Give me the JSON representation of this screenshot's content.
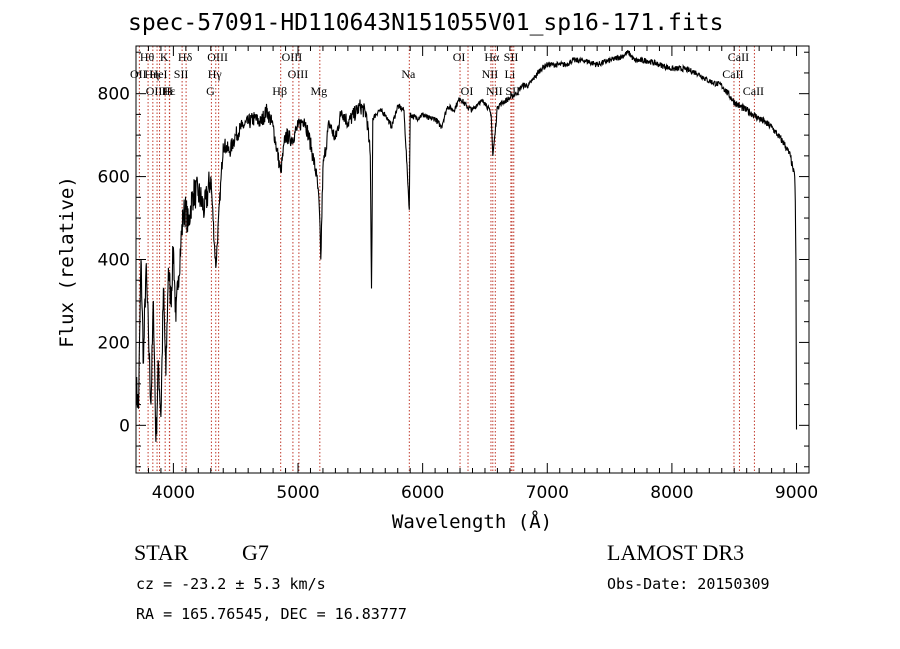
{
  "title": "spec-57091-HD110643N151055V01_sp16-171.fits",
  "footer": {
    "object_type": "STAR",
    "subclass": "G7",
    "survey": "LAMOST DR3",
    "cz": "cz = -23.2 ± 5.3 km/s",
    "obs_date": "Obs-Date: 20150309",
    "coords": "RA = 165.76545, DEC =  16.83777"
  },
  "chart_data": {
    "type": "line",
    "title": "spec-57091-HD110643N151055V01_sp16-171.fits",
    "xlabel": "Wavelength (Å)",
    "ylabel": "Flux (relative)",
    "xlim": [
      3700,
      9100
    ],
    "ylim": [
      -115,
      915
    ],
    "x_ticks": [
      4000,
      5000,
      6000,
      7000,
      8000,
      9000
    ],
    "y_ticks": [
      0,
      200,
      400,
      600,
      800
    ],
    "x_tick_labels": [
      "4000",
      "5000",
      "6000",
      "7000",
      "8000",
      "9000"
    ],
    "y_tick_labels": [
      "0",
      "200",
      "400",
      "600",
      "800"
    ],
    "grid": false,
    "spectrum": {
      "x": [
        3700,
        3720,
        3740,
        3760,
        3780,
        3800,
        3820,
        3840,
        3860,
        3880,
        3900,
        3920,
        3940,
        3960,
        3980,
        4000,
        4020,
        4040,
        4060,
        4080,
        4100,
        4120,
        4140,
        4160,
        4180,
        4200,
        4250,
        4300,
        4340,
        4400,
        4450,
        4500,
        4550,
        4600,
        4650,
        4700,
        4750,
        4800,
        4861,
        4900,
        4950,
        5000,
        5050,
        5100,
        5150,
        5170,
        5183,
        5200,
        5250,
        5300,
        5350,
        5400,
        5450,
        5500,
        5550,
        5580,
        5590,
        5600,
        5650,
        5700,
        5750,
        5800,
        5850,
        5893,
        5900,
        5950,
        6000,
        6050,
        6100,
        6150,
        6200,
        6250,
        6300,
        6350,
        6400,
        6450,
        6500,
        6550,
        6563,
        6580,
        6600,
        6650,
        6700,
        6750,
        6800,
        6850,
        6900,
        6950,
        7000,
        7050,
        7100,
        7150,
        7200,
        7300,
        7400,
        7500,
        7600,
        7650,
        7700,
        7800,
        7900,
        8000,
        8100,
        8200,
        8300,
        8400,
        8450,
        8500,
        8542,
        8600,
        8650,
        8700,
        8750,
        8800,
        8850,
        8900,
        8950,
        8970,
        8985,
        8990,
        8995,
        9000
      ],
      "y": [
        100,
        40,
        400,
        150,
        380,
        220,
        50,
        300,
        -40,
        150,
        20,
        330,
        120,
        380,
        300,
        430,
        250,
        360,
        440,
        510,
        520,
        480,
        530,
        560,
        560,
        560,
        520,
        600,
        380,
        680,
        660,
        700,
        720,
        730,
        740,
        730,
        760,
        720,
        610,
        700,
        690,
        720,
        740,
        680,
        600,
        530,
        400,
        620,
        730,
        690,
        760,
        730,
        750,
        770,
        750,
        650,
        330,
        740,
        760,
        750,
        720,
        770,
        760,
        520,
        750,
        740,
        750,
        740,
        740,
        720,
        770,
        760,
        790,
        770,
        760,
        780,
        780,
        750,
        650,
        700,
        770,
        780,
        790,
        800,
        820,
        820,
        840,
        860,
        870,
        870,
        870,
        870,
        880,
        880,
        870,
        880,
        890,
        900,
        880,
        880,
        870,
        860,
        860,
        850,
        830,
        820,
        800,
        780,
        770,
        760,
        750,
        740,
        730,
        720,
        700,
        680,
        650,
        620,
        600,
        540,
        400,
        -10
      ]
    },
    "line_annotations": [
      {
        "label": "Hθ",
        "x": 3797,
        "row": 0
      },
      {
        "label": "OII",
        "x": 3727,
        "row": 1
      },
      {
        "label": "OIII",
        "x": 3869,
        "row": 2
      },
      {
        "label": "Hε",
        "x": 3970,
        "row": 2
      },
      {
        "label": "H",
        "x": 3968,
        "row": 2
      },
      {
        "label": "K",
        "x": 3934,
        "row": 0
      },
      {
        "label": "Hη",
        "x": 3835,
        "row": 1
      },
      {
        "label": "HeI",
        "x": 3889,
        "row": 1
      },
      {
        "label": "SII",
        "x": 4070,
        "row": 1
      },
      {
        "label": "Hδ",
        "x": 4102,
        "row": 0
      },
      {
        "label": "OIII",
        "x": 4363,
        "row": 0
      },
      {
        "label": "Hγ",
        "x": 4340,
        "row": 1
      },
      {
        "label": "G",
        "x": 4305,
        "row": 2
      },
      {
        "label": "Hβ",
        "x": 4861,
        "row": 2
      },
      {
        "label": "OIII",
        "x": 4959,
        "row": 0
      },
      {
        "label": "OIII",
        "x": 5007,
        "row": 1
      },
      {
        "label": "Mg",
        "x": 5175,
        "row": 2
      },
      {
        "label": "Na",
        "x": 5893,
        "row": 1
      },
      {
        "label": "OI",
        "x": 6300,
        "row": 0
      },
      {
        "label": "OI",
        "x": 6364,
        "row": 2
      },
      {
        "label": "Hα",
        "x": 6563,
        "row": 0
      },
      {
        "label": "NII",
        "x": 6548,
        "row": 1
      },
      {
        "label": "NII",
        "x": 6583,
        "row": 2
      },
      {
        "label": "SII",
        "x": 6717,
        "row": 0
      },
      {
        "label": "Li",
        "x": 6708,
        "row": 1
      },
      {
        "label": "SII",
        "x": 6731,
        "row": 2
      },
      {
        "label": "CaII",
        "x": 8498,
        "row": 1
      },
      {
        "label": "CaII",
        "x": 8542,
        "row": 0
      },
      {
        "label": "CaII",
        "x": 8662,
        "row": 2
      }
    ]
  }
}
